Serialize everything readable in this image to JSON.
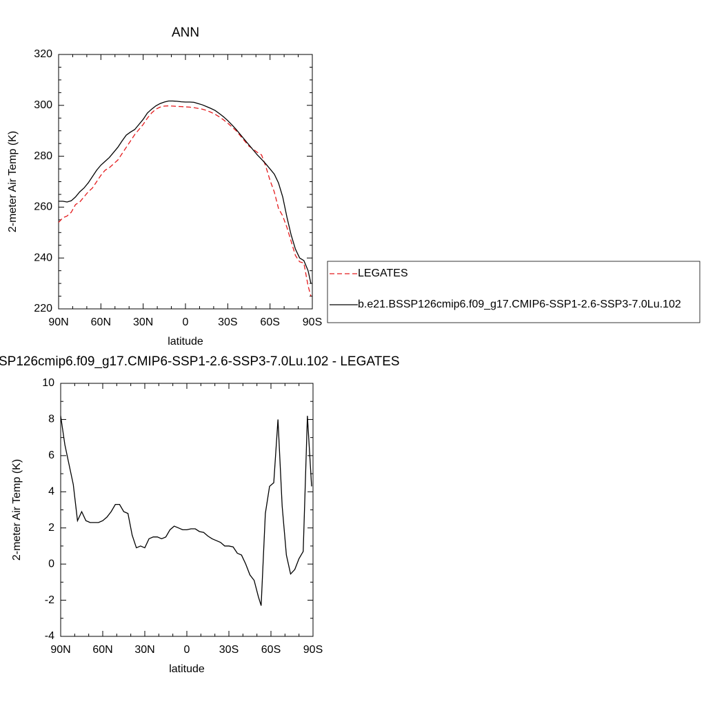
{
  "chart_data": [
    {
      "type": "line",
      "title": "ANN",
      "xlabel": "latitude",
      "ylabel": "2-meter Air Temp (K)",
      "x": [
        90,
        87,
        84,
        81,
        78,
        75,
        72,
        69,
        66,
        63,
        60,
        57,
        54,
        51,
        48,
        45,
        42,
        39,
        36,
        33,
        30,
        27,
        24,
        21,
        18,
        15,
        12,
        9,
        6,
        3,
        0,
        -3,
        -6,
        -9,
        -12,
        -15,
        -18,
        -21,
        -24,
        -27,
        -30,
        -33,
        -36,
        -39,
        -42,
        -45,
        -48,
        -51,
        -54,
        -57,
        -60,
        -63,
        -66,
        -69,
        -72,
        -75,
        -78,
        -81,
        -84,
        -87,
        -89
      ],
      "series": [
        {
          "name": "LEGATES",
          "color": "#e41a1c",
          "dash": true,
          "values": [
            254,
            255.8,
            256.5,
            258,
            261,
            262,
            264,
            266,
            267.5,
            270,
            272.5,
            274.5,
            275.5,
            277,
            278.5,
            281,
            283.5,
            286,
            288.5,
            290.5,
            292.5,
            295,
            297,
            298.5,
            299.3,
            299.7,
            299.8,
            299.7,
            299.6,
            299.5,
            299.4,
            299.3,
            299.1,
            298.8,
            298.5,
            298,
            297.3,
            296.5,
            295.5,
            294.3,
            293,
            291.5,
            290,
            288,
            286,
            284,
            282.8,
            281.5,
            280.5,
            276,
            270.5,
            266,
            259.5,
            256.5,
            252,
            246.5,
            241,
            238.5,
            238,
            229,
            225
          ]
        },
        {
          "name": "b.e21.BSSP126cmip6.f09_g17.CMIP6-SSP1-2.6-SSP3-7.0Lu.102",
          "color": "#000000",
          "dash": false,
          "values": [
            262.3,
            262.3,
            262,
            262.5,
            264,
            266,
            267.5,
            269.5,
            272,
            274.5,
            276.5,
            278,
            279.5,
            281.5,
            283.5,
            286,
            288.3,
            289.5,
            290.5,
            292.5,
            294.5,
            297,
            298.5,
            299.8,
            300.7,
            301.3,
            301.7,
            301.7,
            301.6,
            301.4,
            301.3,
            301.3,
            301.2,
            300.7,
            300.2,
            299.5,
            298.8,
            298,
            296.8,
            295.5,
            294,
            292.3,
            290.5,
            288.5,
            286.5,
            284.5,
            282.5,
            280.5,
            278.8,
            277,
            275,
            273,
            269.5,
            264,
            256,
            249,
            243.5,
            240,
            239,
            235,
            230
          ]
        }
      ],
      "xlim": [
        90,
        -90
      ],
      "xticks": [
        {
          "value": 90,
          "label": "90N"
        },
        {
          "value": 60,
          "label": "60N"
        },
        {
          "value": 30,
          "label": "30N"
        },
        0,
        {
          "value": -30,
          "label": "30S"
        },
        {
          "value": -60,
          "label": "60S"
        },
        {
          "value": -90,
          "label": "90S"
        }
      ],
      "ylim": [
        220,
        320
      ],
      "yticks": [
        220,
        240,
        260,
        280,
        300,
        320
      ]
    },
    {
      "type": "line",
      "title": "SP126cmip6.f09_g17.CMIP6-SSP1-2.6-SSP3-7.0Lu.102 - LEGATES",
      "xlabel": "latitude",
      "ylabel": "2-meter Air Temp (K)",
      "x": [
        90,
        87,
        84,
        81,
        78,
        75,
        72,
        69,
        66,
        63,
        60,
        57,
        54,
        51,
        48,
        45,
        42,
        39,
        36,
        33,
        30,
        27,
        24,
        21,
        18,
        15,
        12,
        9,
        6,
        3,
        0,
        -3,
        -6,
        -9,
        -12,
        -15,
        -18,
        -21,
        -24,
        -27,
        -30,
        -33,
        -36,
        -39,
        -42,
        -45,
        -48,
        -51,
        -53,
        -56,
        -59,
        -62,
        -65,
        -68,
        -71,
        -74,
        -77,
        -80,
        -83,
        -86,
        -89
      ],
      "values": [
        8.2,
        6.6,
        5.5,
        4.4,
        2.4,
        2.9,
        2.4,
        2.3,
        2.3,
        2.3,
        2.4,
        2.6,
        2.9,
        3.3,
        3.3,
        2.9,
        2.8,
        1.6,
        0.9,
        1.0,
        0.9,
        1.4,
        1.5,
        1.5,
        1.4,
        1.5,
        1.9,
        2.1,
        2.0,
        1.9,
        1.9,
        1.95,
        1.95,
        1.8,
        1.75,
        1.55,
        1.4,
        1.3,
        1.2,
        1.0,
        1.0,
        0.95,
        0.6,
        0.5,
        0,
        -0.6,
        -0.9,
        -1.8,
        -2.3,
        2.8,
        4.3,
        4.5,
        8.0,
        3.2,
        0.5,
        -0.55,
        -0.3,
        0.3,
        0.7,
        8.2,
        4.3
      ],
      "color": "#000000",
      "xlim": [
        90,
        -90
      ],
      "xticks": [
        {
          "value": 90,
          "label": "90N"
        },
        {
          "value": 60,
          "label": "60N"
        },
        {
          "value": 30,
          "label": "30N"
        },
        0,
        {
          "value": -30,
          "label": "30S"
        },
        {
          "value": -60,
          "label": "60S"
        },
        {
          "value": -90,
          "label": "90S"
        }
      ],
      "ylim": [
        -4,
        10
      ],
      "yticks": [
        -4,
        -2,
        0,
        2,
        4,
        6,
        8,
        10
      ]
    }
  ]
}
